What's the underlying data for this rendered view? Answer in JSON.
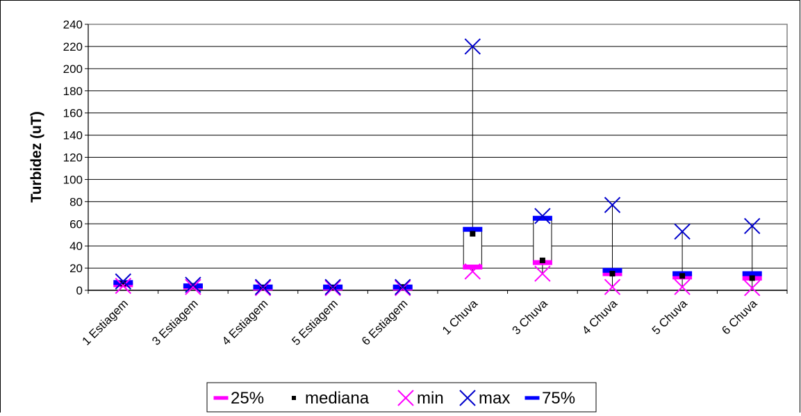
{
  "chart_data": {
    "type": "box",
    "title": "",
    "xlabel": "",
    "ylabel": "Turbidez (uT)",
    "ylim": [
      0,
      240
    ],
    "yticks": [
      0,
      20,
      40,
      60,
      80,
      100,
      120,
      140,
      160,
      180,
      200,
      220,
      240
    ],
    "grid": "horizontal",
    "legend_position": "bottom",
    "categories": [
      "1 Estiagem",
      "3 Estiagem",
      "4 Estiagem",
      "5 Estiagem",
      "6 Estiagem",
      "1 Chuva",
      "3 Chuva",
      "4 Chuva",
      "5 Chuva",
      "6 Chuva"
    ],
    "series": [
      {
        "name": "25%",
        "color": "#ff00ff",
        "marker": "dash",
        "values": [
          5,
          3,
          2,
          2,
          2,
          21,
          25,
          15,
          12,
          11
        ]
      },
      {
        "name": "mediana",
        "color": "#000000",
        "marker": "square",
        "values": [
          6,
          4,
          2.5,
          2.5,
          3,
          51,
          27,
          15,
          13,
          11
        ]
      },
      {
        "name": "min",
        "color": "#ff00ff",
        "marker": "x",
        "values": [
          4,
          3,
          2,
          2,
          2,
          17,
          15,
          3,
          3,
          2
        ]
      },
      {
        "name": "max",
        "color": "#0000cc",
        "marker": "x",
        "values": [
          8,
          5,
          3,
          3,
          3,
          220,
          67,
          77,
          53,
          58
        ]
      },
      {
        "name": "75%",
        "color": "#0000ff",
        "marker": "dash",
        "values": [
          7,
          4,
          3,
          3,
          3,
          55,
          65,
          18,
          15,
          15
        ]
      }
    ]
  }
}
